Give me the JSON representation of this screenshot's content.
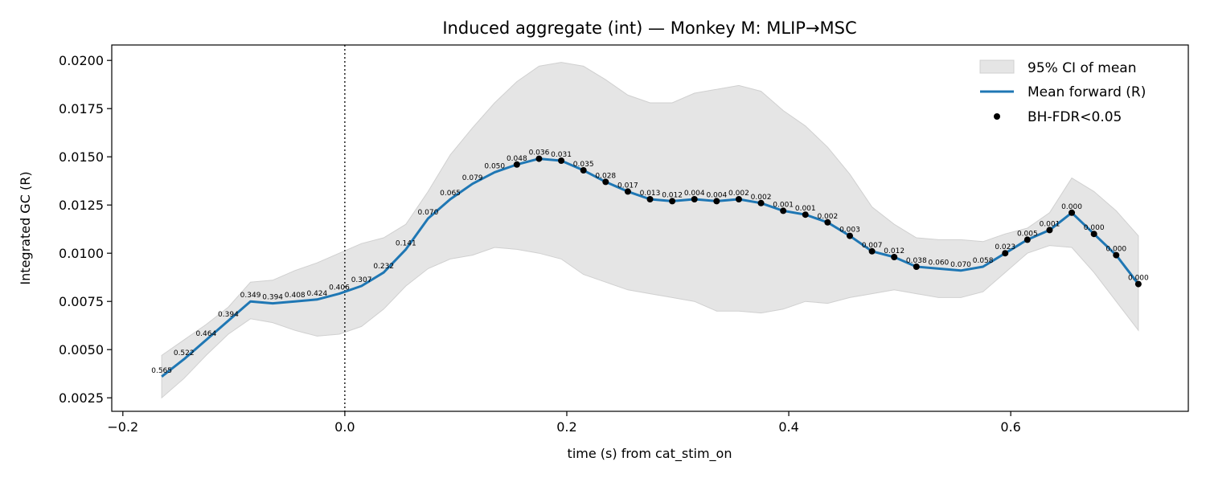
{
  "chart_data": {
    "type": "line",
    "title": "Induced aggregate (int) — Monkey M: MLIP→MSC",
    "xlabel": "time (s) from cat_stim_on",
    "ylabel": "Integrated GC (R)",
    "xlim": [
      -0.21,
      0.76
    ],
    "ylim": [
      0.0018,
      0.0208
    ],
    "xticks": [
      -0.2,
      0.0,
      0.2,
      0.4,
      0.6
    ],
    "xtick_labels": [
      "−0.2",
      "0.0",
      "0.2",
      "0.4",
      "0.6"
    ],
    "yticks": [
      0.0025,
      0.005,
      0.0075,
      0.01,
      0.0125,
      0.015,
      0.0175,
      0.02
    ],
    "ytick_labels": [
      "0.0025",
      "0.0050",
      "0.0075",
      "0.0100",
      "0.0125",
      "0.0150",
      "0.0175",
      "0.0200"
    ],
    "vline_x": 0.0,
    "grid": false,
    "legend_position": "top-right",
    "legend": {
      "ci_label": "95% CI of mean",
      "mean_label": "Mean forward (R)",
      "sig_label": "BH-FDR<0.05"
    },
    "colors": {
      "mean_line": "#1f77b4",
      "ci_fill": "#e5e5e5",
      "ci_edge": "#d0d0d0",
      "sig_marker": "#000000"
    },
    "x": [
      -0.165,
      -0.145,
      -0.125,
      -0.105,
      -0.085,
      -0.065,
      -0.045,
      -0.025,
      -0.005,
      0.015,
      0.035,
      0.055,
      0.075,
      0.095,
      0.115,
      0.135,
      0.155,
      0.175,
      0.195,
      0.215,
      0.235,
      0.255,
      0.275,
      0.295,
      0.315,
      0.335,
      0.355,
      0.375,
      0.395,
      0.415,
      0.435,
      0.455,
      0.475,
      0.495,
      0.515,
      0.535,
      0.555,
      0.575,
      0.595,
      0.615,
      0.635,
      0.655,
      0.675,
      0.695,
      0.715
    ],
    "mean": [
      0.0036,
      0.0045,
      0.0055,
      0.0065,
      0.0075,
      0.0074,
      0.0075,
      0.0076,
      0.0079,
      0.0083,
      0.009,
      0.0102,
      0.0118,
      0.0128,
      0.0136,
      0.0142,
      0.0146,
      0.0149,
      0.0148,
      0.0143,
      0.0137,
      0.0132,
      0.0128,
      0.0127,
      0.0128,
      0.0127,
      0.0128,
      0.0126,
      0.0122,
      0.012,
      0.0116,
      0.0109,
      0.0101,
      0.0098,
      0.0093,
      0.0092,
      0.0091,
      0.0093,
      0.01,
      0.0107,
      0.0112,
      0.0121,
      0.011,
      0.0099,
      0.0084
    ],
    "ci_upper": [
      0.0047,
      0.0055,
      0.0063,
      0.0072,
      0.0085,
      0.0086,
      0.0091,
      0.0095,
      0.01,
      0.0105,
      0.0108,
      0.0115,
      0.0132,
      0.0151,
      0.0165,
      0.0178,
      0.0189,
      0.0197,
      0.0199,
      0.0197,
      0.019,
      0.0182,
      0.0178,
      0.0178,
      0.0183,
      0.0185,
      0.0187,
      0.0184,
      0.0174,
      0.0166,
      0.0155,
      0.0141,
      0.0124,
      0.0115,
      0.0108,
      0.0107,
      0.0107,
      0.0106,
      0.011,
      0.0113,
      0.0121,
      0.0139,
      0.0132,
      0.0122,
      0.0109
    ],
    "ci_lower": [
      0.0025,
      0.0035,
      0.0047,
      0.0058,
      0.0066,
      0.0064,
      0.006,
      0.0057,
      0.0058,
      0.0062,
      0.0071,
      0.0083,
      0.0092,
      0.0097,
      0.0099,
      0.0103,
      0.0102,
      0.01,
      0.0097,
      0.0089,
      0.0085,
      0.0081,
      0.0079,
      0.0077,
      0.0075,
      0.007,
      0.007,
      0.0069,
      0.0071,
      0.0075,
      0.0074,
      0.0077,
      0.0079,
      0.0081,
      0.0079,
      0.0077,
      0.0077,
      0.008,
      0.009,
      0.01,
      0.0104,
      0.0103,
      0.009,
      0.0075,
      0.006
    ],
    "p_labels": [
      "0.565",
      "0.522",
      "0.464",
      "0.394",
      "0.349",
      "0.394",
      "0.408",
      "0.424",
      "0.406",
      "0.307",
      "0.232",
      "0.141",
      "0.070",
      "0.065",
      "0.079",
      "0.050",
      "0.048",
      "0.036",
      "0.031",
      "0.035",
      "0.028",
      "0.017",
      "0.013",
      "0.012",
      "0.004",
      "0.004",
      "0.002",
      "0.002",
      "0.001",
      "0.001",
      "0.002",
      "0.003",
      "0.007",
      "0.012",
      "0.038",
      "0.060",
      "0.070",
      "0.058",
      "0.023",
      "0.005",
      "0.001",
      "0.000",
      "0.000",
      "0.000",
      "0.000"
    ],
    "significant": [
      false,
      false,
      false,
      false,
      false,
      false,
      false,
      false,
      false,
      false,
      false,
      false,
      false,
      false,
      false,
      false,
      true,
      true,
      true,
      true,
      true,
      true,
      true,
      true,
      true,
      true,
      true,
      true,
      true,
      true,
      true,
      true,
      true,
      true,
      true,
      false,
      false,
      false,
      true,
      true,
      true,
      true,
      true,
      true,
      true
    ]
  }
}
